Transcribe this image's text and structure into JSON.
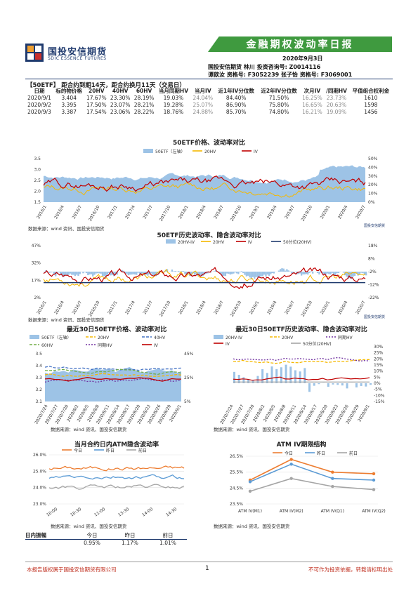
{
  "header": {
    "logo_cn": "国投安信期货",
    "logo_en": "SDIC ESSENCE FUTURES",
    "title": "金融期权波动率日报",
    "date": "2020年9月3日",
    "line1": "国投安信期货 林川 投资咨询号: Z0014116",
    "line2": "谭歆汝 资格号: F3052239    张子怡 资格号: F3069001"
  },
  "table": {
    "title": "【50ETF】 距合约到期14天，距合约换月11天（交易日）",
    "headers": [
      "日期",
      "标的物价格",
      "20HV",
      "40HV",
      "60HV",
      "当月同期HV",
      "当月IV",
      "近1年IV分位数",
      "近2年IV分位数",
      "次月IV",
      "/同期HV",
      "平值组合权利金"
    ],
    "rows": [
      [
        "2020/9/1",
        "3.404",
        "17.67%",
        "23.30%",
        "28.19%",
        "19.03%",
        "24.04%",
        "84.40%",
        "71.50%",
        "16.25%",
        "23.73%",
        "1610"
      ],
      [
        "2020/9/2",
        "3.395",
        "17.50%",
        "23.07%",
        "28.21%",
        "19.28%",
        "25.07%",
        "86.90%",
        "75.80%",
        "16.65%",
        "20.63%",
        "1598"
      ],
      [
        "2020/9/3",
        "3.387",
        "17.54%",
        "23.06%",
        "28.22%",
        "18.76%",
        "24.88%",
        "85.70%",
        "74.80%",
        "16.21%",
        "19.09%",
        "1456"
      ]
    ]
  },
  "charts": {
    "c1": {
      "title": "50ETF价格、波动率对比",
      "legend": [
        "50ETF（左轴）",
        "20HV",
        "IV"
      ],
      "yl": [
        "3.5",
        "3.0",
        "2.5",
        "2.0",
        "1.5"
      ],
      "yr": [
        "50%",
        "40%",
        "30%",
        "20%",
        "10%",
        "0%"
      ],
      "x": [
        "2016/1",
        "2016/4",
        "2016/7",
        "2016/10",
        "2017/1",
        "2017/4",
        "2017/7",
        "2017/10",
        "2018/1",
        "2018/4",
        "2018/7",
        "2018/10",
        "2019/1",
        "2019/4",
        "2019/7",
        "2019/10",
        "2020/1",
        "2020/4",
        "2020/7"
      ]
    },
    "c2": {
      "title": "50ETF历史波动率、隐含波动率对比",
      "legend": [
        "20HV-IV",
        "20HV",
        "IV",
        "50分位(20HV)"
      ],
      "yl": [
        "47%",
        "32%",
        "17%",
        "2%"
      ],
      "yr": [
        "18%",
        "8%",
        "-2%",
        "-12%",
        "-22%"
      ],
      "x": [
        "2016/1",
        "2016/4",
        "2016/7",
        "2016/10",
        "2017/1",
        "2017/4",
        "2017/7",
        "2017/10",
        "2018/1",
        "2018/4",
        "2018/7",
        "2018/10",
        "2019/1",
        "2019/4",
        "2019/7",
        "2019/10",
        "2020/1",
        "2020/4",
        "2020/7"
      ]
    },
    "c3": {
      "title": "最近30日50ETF价格、波动率对比",
      "legend": [
        "50ETF（左轴）",
        "20HV",
        "40HV",
        "60HV",
        "同期HV",
        "IV"
      ],
      "yl": [
        "3.5",
        "3.4",
        "3.3",
        "3.2",
        "3.1"
      ],
      "yr": [
        "45%",
        "25%",
        "5%"
      ],
      "x": [
        "2020/7/24",
        "2020/7/27",
        "2020/7/30",
        "2020/8/2",
        "2020/8/5",
        "2020/8/8",
        "2020/8/11",
        "2020/8/14",
        "2020/8/17",
        "2020/8/20",
        "2020/8/23",
        "2020/8/26",
        "2020/8/29",
        "2020/9/1"
      ]
    },
    "c4": {
      "title": "最近30日50ETF历史波动率、隐含波动率对比",
      "legend": [
        "20HV-IV",
        "20HV",
        "同期HV",
        "IV",
        "50分位(20HV)"
      ],
      "yr": [
        "30%",
        "25%",
        "20%",
        "15%",
        "10%",
        "5%",
        "0%",
        "-5%",
        "-10%",
        "-15%"
      ],
      "x": [
        "2020/7/24",
        "2020/7/27",
        "2020/7/30",
        "2020/8/2",
        "2020/8/5",
        "2020/8/8",
        "2020/8/11",
        "2020/8/14",
        "2020/8/17",
        "2020/8/20",
        "2020/8/23",
        "2020/8/26",
        "2020/8/29",
        "2020/9/1"
      ]
    },
    "c5": {
      "title": "当月合约日内ATM隐含波动率",
      "legend": [
        "今日",
        "昨日",
        "前日"
      ],
      "yl": [
        "26.0%",
        "25.0%",
        "24.0%",
        "23.0%"
      ],
      "x": [
        "10:00",
        "10:30",
        "11:00",
        "13:30",
        "14:00",
        "14:30"
      ]
    },
    "c6": {
      "title": "ATM IV期限结构",
      "legend": [
        "今日",
        "昨日",
        "前日"
      ],
      "yl": [
        "26.5%",
        "25.5%",
        "24.5%",
        "23.5%"
      ],
      "x": [
        "ATM IV(M1)",
        "ATM IV(M2)",
        "ATM IV(Q1)",
        "ATM IV(Q2)"
      ]
    }
  },
  "source": "数据来源：wind 资讯、国投安信期货",
  "watermark": "国投安信期货",
  "amplitude": {
    "label": "日内振幅",
    "headers": [
      "今日",
      "昨日",
      "前日"
    ],
    "values": [
      "0.95%",
      "1.17%",
      "1.01%"
    ]
  },
  "footer": {
    "left": "本报告版权属于国投安信期货有限公司",
    "page": "1",
    "right": "不可作为投资依据，转载请标明出处"
  },
  "colors": {
    "brand_blue": "#1f3a6e",
    "banner_green": "#3f9a3f",
    "area_blue": "#9dc3e6",
    "iv_red": "#c00000",
    "hv_orange": "#f5b800",
    "purple": "#7030a0",
    "today": "#ed7d31",
    "yesterday": "#5b9bd5",
    "before": "#a5a5a5"
  },
  "chart_data": [
    {
      "type": "line",
      "title": "ATM IV期限结构",
      "categories": [
        "ATM IV(M1)",
        "ATM IV(M2)",
        "ATM IV(Q1)",
        "ATM IV(Q2)"
      ],
      "series": [
        {
          "name": "今日",
          "values": [
            25.0,
            26.3,
            25.5,
            25.4
          ]
        },
        {
          "name": "昨日",
          "values": [
            24.9,
            26.0,
            25.1,
            25.0
          ]
        },
        {
          "name": "前日",
          "values": [
            24.3,
            25.1,
            24.6,
            24.4
          ]
        }
      ],
      "ylim": [
        23.5,
        26.5
      ]
    },
    {
      "type": "line",
      "title": "当月合约日内ATM隐含波动率",
      "categories": [
        "10:00",
        "10:30",
        "11:00",
        "13:30",
        "14:00",
        "14:30"
      ],
      "series": [
        {
          "name": "今日",
          "values": [
            25.1,
            25.2,
            25.1,
            25.2,
            25.3,
            25.3
          ]
        },
        {
          "name": "昨日",
          "values": [
            24.6,
            24.4,
            24.6,
            24.6,
            24.8,
            24.9
          ]
        },
        {
          "name": "前日",
          "values": [
            24.0,
            23.9,
            24.0,
            24.1,
            24.1,
            24.0
          ]
        }
      ],
      "ylim": [
        23.0,
        26.0
      ]
    }
  ]
}
